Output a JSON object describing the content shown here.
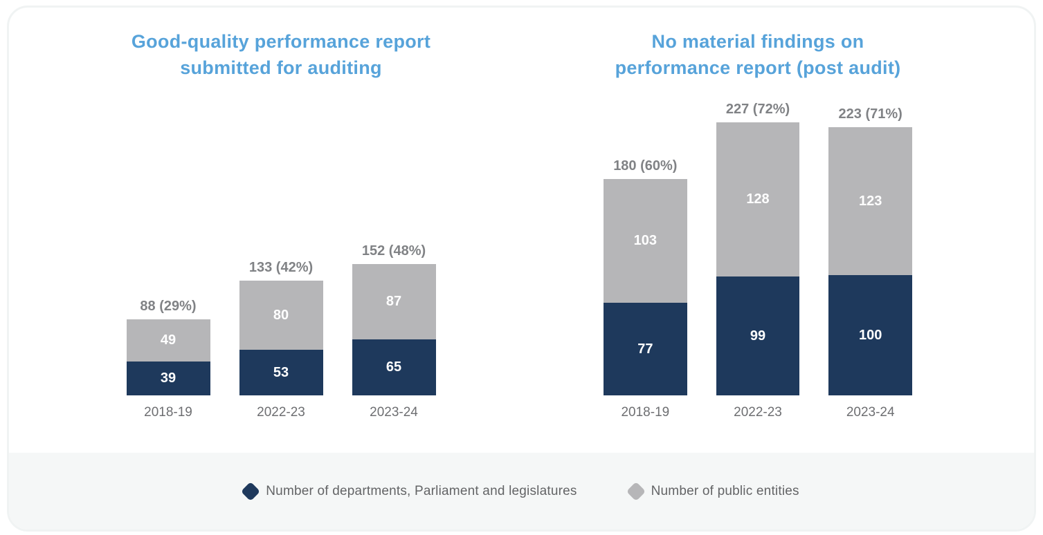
{
  "colors": {
    "title_blue": "#57a3da",
    "navy": "#1e395c",
    "bar_gray": "#b6b6b8",
    "total_label_gray": "#808285",
    "category_gray": "#6d6e71",
    "legend_text_gray": "#636466",
    "legend_strip_bg": "#f5f7f7",
    "card_border": "#f0f3f3"
  },
  "legend": {
    "items": [
      {
        "label": "Number of departments, Parliament and legislatures",
        "color": "#1e395c"
      },
      {
        "label": "Number of public entities",
        "color": "#b6b6b8"
      }
    ]
  },
  "chart_data": [
    {
      "type": "stacked-bar",
      "title": "Good-quality performance report submitted for auditing",
      "title_lines": [
        "Good-quality performance report",
        "submitted for auditing"
      ],
      "categories": [
        "2018-19",
        "2022-23",
        "2023-24"
      ],
      "series": [
        {
          "name": "Number of departments, Parliament and legislatures",
          "color": "#1e395c",
          "values": [
            39,
            53,
            65
          ]
        },
        {
          "name": "Number of public entities",
          "color": "#b6b6b8",
          "values": [
            49,
            80,
            87
          ]
        }
      ],
      "totals": [
        88,
        133,
        152
      ],
      "total_labels": [
        "88 (29%)",
        "133 (42%)",
        "152 (48%)"
      ],
      "grid": false,
      "axis_lines": false,
      "value_labels": "inside-white",
      "legend_position": "shared-bottom"
    },
    {
      "type": "stacked-bar",
      "title": "No material findings on performance report (post audit)",
      "title_lines": [
        "No material findings on",
        "performance report (post audit)"
      ],
      "categories": [
        "2018-19",
        "2022-23",
        "2023-24"
      ],
      "series": [
        {
          "name": "Number of departments, Parliament and legislatures",
          "color": "#1e395c",
          "values": [
            77,
            99,
            100
          ]
        },
        {
          "name": "Number of public entities",
          "color": "#b6b6b8",
          "values": [
            103,
            128,
            123
          ]
        }
      ],
      "totals": [
        180,
        227,
        223
      ],
      "total_labels": [
        "180 (60%)",
        "227 (72%)",
        "223 (71%)"
      ],
      "grid": false,
      "axis_lines": false,
      "value_labels": "inside-white",
      "legend_position": "shared-bottom"
    }
  ]
}
